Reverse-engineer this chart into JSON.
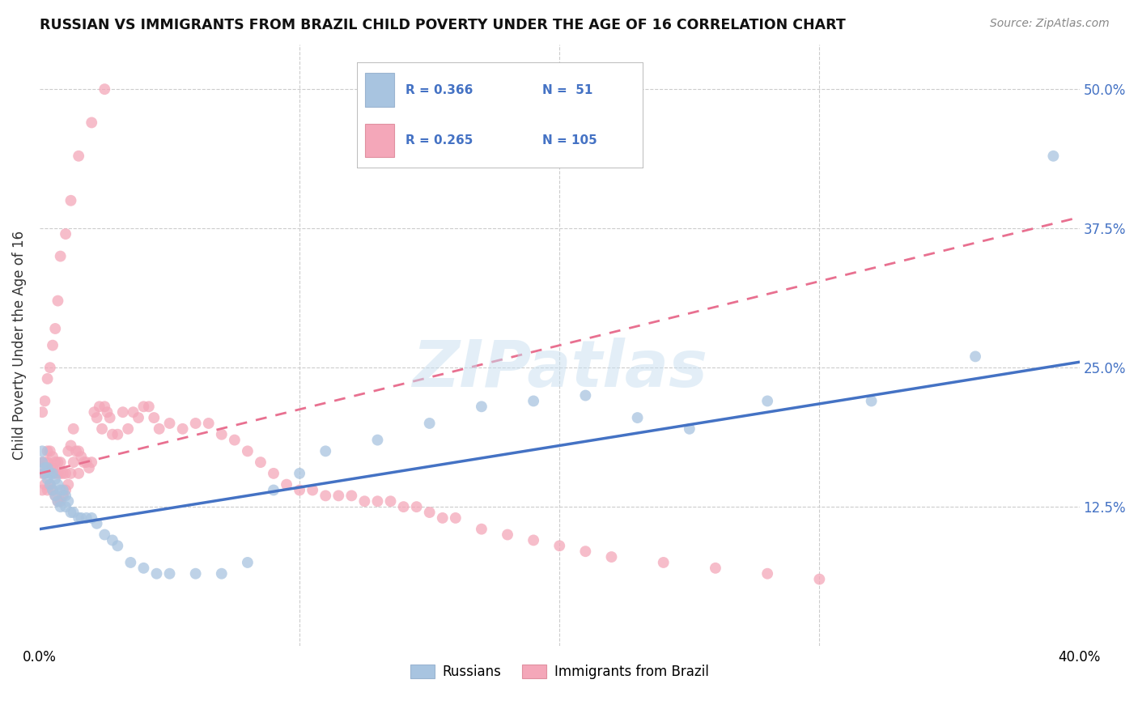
{
  "title": "RUSSIAN VS IMMIGRANTS FROM BRAZIL CHILD POVERTY UNDER THE AGE OF 16 CORRELATION CHART",
  "source": "Source: ZipAtlas.com",
  "ylabel": "Child Poverty Under the Age of 16",
  "ytick_labels": [
    "12.5%",
    "25.0%",
    "37.5%",
    "50.0%"
  ],
  "ytick_values": [
    0.125,
    0.25,
    0.375,
    0.5
  ],
  "xlim": [
    0.0,
    0.4
  ],
  "ylim": [
    0.0,
    0.54
  ],
  "color_russian": "#a8c4e0",
  "color_brazil": "#f4a7b9",
  "color_russian_line": "#4472c4",
  "color_brazil_line": "#e87090",
  "watermark": "ZIPatlas",
  "legend_r1": "R = 0.366",
  "legend_n1": "N =  51",
  "legend_r2": "R = 0.265",
  "legend_n2": "N = 105",
  "russian_x": [
    0.001,
    0.001,
    0.002,
    0.002,
    0.003,
    0.003,
    0.004,
    0.004,
    0.005,
    0.005,
    0.006,
    0.006,
    0.007,
    0.007,
    0.008,
    0.008,
    0.009,
    0.01,
    0.01,
    0.011,
    0.012,
    0.013,
    0.015,
    0.016,
    0.018,
    0.02,
    0.022,
    0.025,
    0.028,
    0.03,
    0.035,
    0.04,
    0.045,
    0.05,
    0.06,
    0.07,
    0.08,
    0.09,
    0.1,
    0.11,
    0.13,
    0.15,
    0.17,
    0.19,
    0.21,
    0.23,
    0.25,
    0.28,
    0.32,
    0.36,
    0.39
  ],
  "russian_y": [
    0.175,
    0.165,
    0.16,
    0.155,
    0.16,
    0.15,
    0.155,
    0.145,
    0.155,
    0.14,
    0.15,
    0.135,
    0.145,
    0.13,
    0.14,
    0.125,
    0.14,
    0.135,
    0.125,
    0.13,
    0.12,
    0.12,
    0.115,
    0.115,
    0.115,
    0.115,
    0.11,
    0.1,
    0.095,
    0.09,
    0.075,
    0.07,
    0.065,
    0.065,
    0.065,
    0.065,
    0.075,
    0.14,
    0.155,
    0.175,
    0.185,
    0.2,
    0.215,
    0.22,
    0.225,
    0.205,
    0.195,
    0.22,
    0.22,
    0.26,
    0.44
  ],
  "brazil_x": [
    0.001,
    0.001,
    0.001,
    0.002,
    0.002,
    0.002,
    0.003,
    0.003,
    0.003,
    0.004,
    0.004,
    0.004,
    0.005,
    0.005,
    0.005,
    0.006,
    0.006,
    0.006,
    0.007,
    0.007,
    0.007,
    0.008,
    0.008,
    0.008,
    0.009,
    0.009,
    0.01,
    0.01,
    0.011,
    0.011,
    0.012,
    0.012,
    0.013,
    0.013,
    0.014,
    0.015,
    0.015,
    0.016,
    0.017,
    0.018,
    0.019,
    0.02,
    0.021,
    0.022,
    0.023,
    0.024,
    0.025,
    0.026,
    0.027,
    0.028,
    0.03,
    0.032,
    0.034,
    0.036,
    0.038,
    0.04,
    0.042,
    0.044,
    0.046,
    0.05,
    0.055,
    0.06,
    0.065,
    0.07,
    0.075,
    0.08,
    0.085,
    0.09,
    0.095,
    0.1,
    0.105,
    0.11,
    0.115,
    0.12,
    0.125,
    0.13,
    0.135,
    0.14,
    0.145,
    0.15,
    0.155,
    0.16,
    0.17,
    0.18,
    0.19,
    0.2,
    0.21,
    0.22,
    0.24,
    0.26,
    0.28,
    0.3,
    0.001,
    0.002,
    0.003,
    0.004,
    0.005,
    0.006,
    0.007,
    0.008,
    0.01,
    0.012,
    0.015,
    0.02,
    0.025
  ],
  "brazil_y": [
    0.165,
    0.155,
    0.14,
    0.165,
    0.155,
    0.145,
    0.175,
    0.165,
    0.14,
    0.175,
    0.16,
    0.145,
    0.17,
    0.16,
    0.14,
    0.165,
    0.155,
    0.135,
    0.165,
    0.155,
    0.13,
    0.165,
    0.155,
    0.13,
    0.155,
    0.135,
    0.155,
    0.14,
    0.175,
    0.145,
    0.18,
    0.155,
    0.195,
    0.165,
    0.175,
    0.175,
    0.155,
    0.17,
    0.165,
    0.165,
    0.16,
    0.165,
    0.21,
    0.205,
    0.215,
    0.195,
    0.215,
    0.21,
    0.205,
    0.19,
    0.19,
    0.21,
    0.195,
    0.21,
    0.205,
    0.215,
    0.215,
    0.205,
    0.195,
    0.2,
    0.195,
    0.2,
    0.2,
    0.19,
    0.185,
    0.175,
    0.165,
    0.155,
    0.145,
    0.14,
    0.14,
    0.135,
    0.135,
    0.135,
    0.13,
    0.13,
    0.13,
    0.125,
    0.125,
    0.12,
    0.115,
    0.115,
    0.105,
    0.1,
    0.095,
    0.09,
    0.085,
    0.08,
    0.075,
    0.07,
    0.065,
    0.06,
    0.21,
    0.22,
    0.24,
    0.25,
    0.27,
    0.285,
    0.31,
    0.35,
    0.37,
    0.4,
    0.44,
    0.47,
    0.5
  ]
}
